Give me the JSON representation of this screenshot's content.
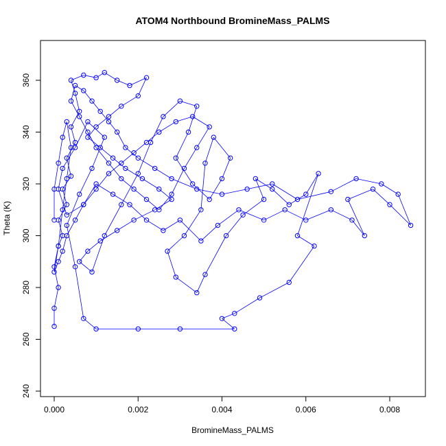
{
  "chart_data": {
    "type": "scatter",
    "title": "ATOM4 Northbound BromineMass_PALMS",
    "xlabel": "BromineMass_PALMS",
    "ylabel": "Theta (K)",
    "xlim": [
      0.0,
      0.0085
    ],
    "ylim": [
      240,
      368
    ],
    "x_ticks": [
      0.0,
      0.002,
      0.004,
      0.006,
      0.008
    ],
    "x_tick_labels": [
      "0.000",
      "0.002",
      "0.004",
      "0.006",
      "0.008"
    ],
    "y_ticks": [
      240,
      260,
      280,
      300,
      320,
      340,
      360
    ],
    "y_tick_labels": [
      "240",
      "260",
      "280",
      "300",
      "320",
      "340",
      "360"
    ],
    "grid": false,
    "legend": "none",
    "marker": "open-circle",
    "connected": true,
    "color": "#0000ff",
    "points": [
      [
        0.0,
        265
      ],
      [
        0.0,
        272
      ],
      [
        0.0001,
        280
      ],
      [
        0.0,
        288
      ],
      [
        0.0001,
        296
      ],
      [
        0.0002,
        300
      ],
      [
        0.0001,
        306
      ],
      [
        0.0003,
        312
      ],
      [
        0.0002,
        318
      ],
      [
        0.0004,
        323
      ],
      [
        0.0003,
        330
      ],
      [
        0.0005,
        336
      ],
      [
        0.0004,
        342
      ],
      [
        0.0006,
        348
      ],
      [
        0.0005,
        355
      ],
      [
        0.0004,
        360
      ],
      [
        0.0007,
        362
      ],
      [
        0.001,
        361
      ],
      [
        0.0012,
        363
      ],
      [
        0.0015,
        360
      ],
      [
        0.0018,
        358
      ],
      [
        0.0022,
        361
      ],
      [
        0.002,
        354
      ],
      [
        0.0016,
        350
      ],
      [
        0.0013,
        346
      ],
      [
        0.001,
        342
      ],
      [
        0.0008,
        338
      ],
      [
        0.0011,
        334
      ],
      [
        0.0014,
        330
      ],
      [
        0.0017,
        326
      ],
      [
        0.0021,
        322
      ],
      [
        0.0025,
        318
      ],
      [
        0.0028,
        314
      ],
      [
        0.0024,
        310
      ],
      [
        0.0019,
        306
      ],
      [
        0.0015,
        302
      ],
      [
        0.0011,
        298
      ],
      [
        0.0008,
        294
      ],
      [
        0.0006,
        290
      ],
      [
        0.0009,
        286
      ],
      [
        0.0012,
        300
      ],
      [
        0.0016,
        312
      ],
      [
        0.002,
        324
      ],
      [
        0.0023,
        336
      ],
      [
        0.0026,
        346
      ],
      [
        0.003,
        352
      ],
      [
        0.0034,
        350
      ],
      [
        0.0032,
        340
      ],
      [
        0.0029,
        330
      ],
      [
        0.0033,
        320
      ],
      [
        0.0037,
        314
      ],
      [
        0.004,
        322
      ],
      [
        0.0042,
        330
      ],
      [
        0.0038,
        338
      ],
      [
        0.0036,
        328
      ],
      [
        0.0035,
        310
      ],
      [
        0.0031,
        300
      ],
      [
        0.0027,
        294
      ],
      [
        0.0029,
        284
      ],
      [
        0.0034,
        278
      ],
      [
        0.0036,
        285
      ],
      [
        0.0041,
        300
      ],
      [
        0.0045,
        308
      ],
      [
        0.005,
        314
      ],
      [
        0.0048,
        322
      ],
      [
        0.0052,
        318
      ],
      [
        0.0056,
        312
      ],
      [
        0.006,
        316
      ],
      [
        0.0063,
        324
      ],
      [
        0.0058,
        300
      ],
      [
        0.0062,
        296
      ],
      [
        0.0056,
        282
      ],
      [
        0.0049,
        276
      ],
      [
        0.0043,
        270
      ],
      [
        0.004,
        268
      ],
      [
        0.0043,
        264
      ],
      [
        0.003,
        264
      ],
      [
        0.002,
        264
      ],
      [
        0.001,
        264
      ],
      [
        0.0007,
        268
      ],
      [
        0.0005,
        288
      ],
      [
        0.0003,
        304
      ],
      [
        0.0006,
        316
      ],
      [
        0.0009,
        326
      ],
      [
        0.0012,
        338
      ],
      [
        0.0008,
        344
      ],
      [
        0.0005,
        334
      ],
      [
        0.0002,
        326
      ],
      [
        0.0001,
        318
      ],
      [
        0.0003,
        308
      ],
      [
        0.0007,
        312
      ],
      [
        0.001,
        320
      ],
      [
        0.0014,
        316
      ],
      [
        0.0018,
        312
      ],
      [
        0.0022,
        306
      ],
      [
        0.0026,
        302
      ],
      [
        0.003,
        306
      ],
      [
        0.0035,
        298
      ],
      [
        0.0039,
        304
      ],
      [
        0.0044,
        310
      ],
      [
        0.005,
        306
      ],
      [
        0.0055,
        310
      ],
      [
        0.006,
        306
      ],
      [
        0.0066,
        310
      ],
      [
        0.0071,
        306
      ],
      [
        0.0074,
        300
      ],
      [
        0.007,
        314
      ],
      [
        0.0076,
        318
      ],
      [
        0.008,
        312
      ],
      [
        0.0085,
        304
      ],
      [
        0.0082,
        316
      ],
      [
        0.0078,
        320
      ],
      [
        0.0072,
        322
      ],
      [
        0.0066,
        317
      ],
      [
        0.0058,
        314
      ],
      [
        0.0052,
        320
      ],
      [
        0.0046,
        318
      ],
      [
        0.004,
        316
      ],
      [
        0.0034,
        318
      ],
      [
        0.0028,
        322
      ],
      [
        0.0024,
        326
      ],
      [
        0.002,
        330
      ],
      [
        0.0017,
        334
      ],
      [
        0.0015,
        340
      ],
      [
        0.0013,
        344
      ],
      [
        0.0011,
        348
      ],
      [
        0.0009,
        352
      ],
      [
        0.0007,
        356
      ],
      [
        0.0005,
        358
      ],
      [
        0.0004,
        352
      ],
      [
        0.0006,
        346
      ],
      [
        0.0008,
        340
      ],
      [
        0.001,
        334
      ],
      [
        0.0013,
        328
      ],
      [
        0.0016,
        322
      ],
      [
        0.0019,
        318
      ],
      [
        0.0022,
        314
      ],
      [
        0.0025,
        310
      ],
      [
        0.0028,
        316
      ],
      [
        0.0031,
        326
      ],
      [
        0.0034,
        334
      ],
      [
        0.0037,
        342
      ],
      [
        0.0033,
        346
      ],
      [
        0.0029,
        344
      ],
      [
        0.0025,
        340
      ],
      [
        0.0022,
        336
      ],
      [
        0.0019,
        332
      ],
      [
        0.0016,
        328
      ],
      [
        0.0013,
        324
      ],
      [
        0.001,
        318
      ],
      [
        0.0007,
        312
      ],
      [
        0.0005,
        306
      ],
      [
        0.0003,
        300
      ],
      [
        0.0002,
        294
      ],
      [
        0.0001,
        290
      ],
      [
        0.0,
        286
      ],
      [
        0.0001,
        296
      ],
      [
        0.0002,
        310
      ],
      [
        0.0003,
        322
      ],
      [
        0.0004,
        334
      ],
      [
        0.0003,
        344
      ],
      [
        0.0002,
        338
      ],
      [
        0.0001,
        328
      ],
      [
        0.0,
        318
      ],
      [
        0.0,
        306
      ]
    ]
  }
}
